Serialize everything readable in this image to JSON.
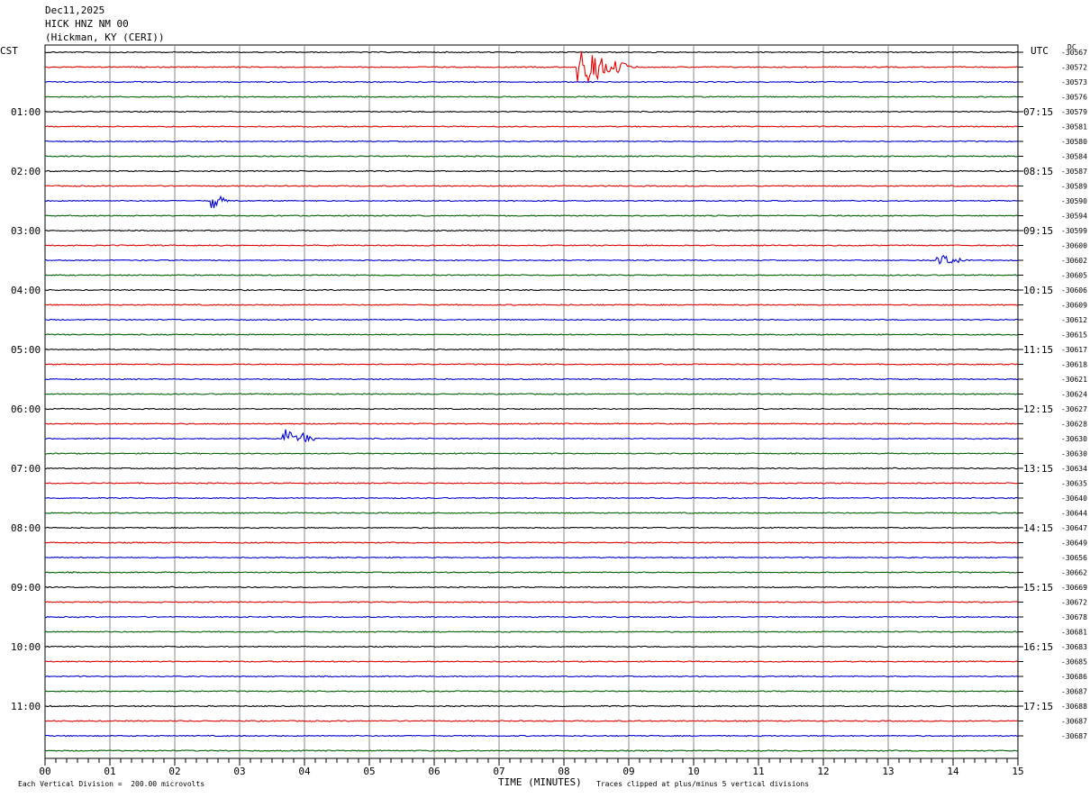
{
  "header": {
    "date": "Dec11,2025",
    "station": "HICK HNZ NM 00",
    "location": "(Hickman, KY (CERI))"
  },
  "left_zone_label": "CST",
  "right_zone_label": "UTC",
  "dc_label": "DC",
  "footer": {
    "scale_note": "Each Vertical Division =  200.00 microvolts",
    "xlabel": "TIME (MINUTES)",
    "clip_note": "Traces clipped at plus/minus 5 vertical divisions"
  },
  "chart_data": {
    "type": "line",
    "title": "",
    "xlabel": "TIME (MINUTES)",
    "ylabel": "",
    "x_ticks": [
      "00",
      "01",
      "02",
      "03",
      "04",
      "05",
      "06",
      "07",
      "08",
      "09",
      "10",
      "11",
      "12",
      "13",
      "14",
      "15"
    ],
    "xlim": [
      0,
      15
    ],
    "grid": true,
    "trace_colors": [
      "#000000",
      "#e00000",
      "#0000d0",
      "#006000"
    ],
    "left_hour_labels": [
      "01:00",
      "02:00",
      "03:00",
      "04:00",
      "05:00",
      "06:00",
      "07:00",
      "08:00",
      "09:00",
      "10:00",
      "11:00"
    ],
    "right_hour_labels": [
      "07:15",
      "08:15",
      "09:15",
      "10:15",
      "11:15",
      "12:15",
      "13:15",
      "14:15",
      "15:15",
      "16:15",
      "17:15"
    ],
    "dc_offsets": [
      "-30567",
      "-30572",
      "-30573",
      "-30576",
      "-30579",
      "-30581",
      "-30580",
      "-30584",
      "-30587",
      "-30589",
      "-30590",
      "-30594",
      "-30599",
      "-30600",
      "-30602",
      "-30605",
      "-30606",
      "-30609",
      "-30612",
      "-30615",
      "-30617",
      "-30618",
      "-30621",
      "-30624",
      "-30627",
      "-30628",
      "-30630",
      "-30630",
      "-30634",
      "-30635",
      "-30640",
      "-30644",
      "-30647",
      "-30649",
      "-30656",
      "-30662",
      "-30669",
      "-30672",
      "-30678",
      "-30681",
      "-30683",
      "-30685",
      "-30686",
      "-30687",
      "-30688",
      "-30687",
      "-30687"
    ],
    "events": [
      {
        "trace": 1,
        "minute": 8.25,
        "amplitude": 2.0,
        "duration": 0.9
      },
      {
        "trace": 14,
        "minute": 13.8,
        "amplitude": 0.6,
        "duration": 0.5
      },
      {
        "trace": 10,
        "minute": 2.6,
        "amplitude": 0.8,
        "duration": 0.3
      },
      {
        "trace": 26,
        "minute": 3.7,
        "amplitude": 1.1,
        "duration": 0.25
      },
      {
        "trace": 26,
        "minute": 4.0,
        "amplitude": 0.8,
        "duration": 0.2
      }
    ]
  }
}
